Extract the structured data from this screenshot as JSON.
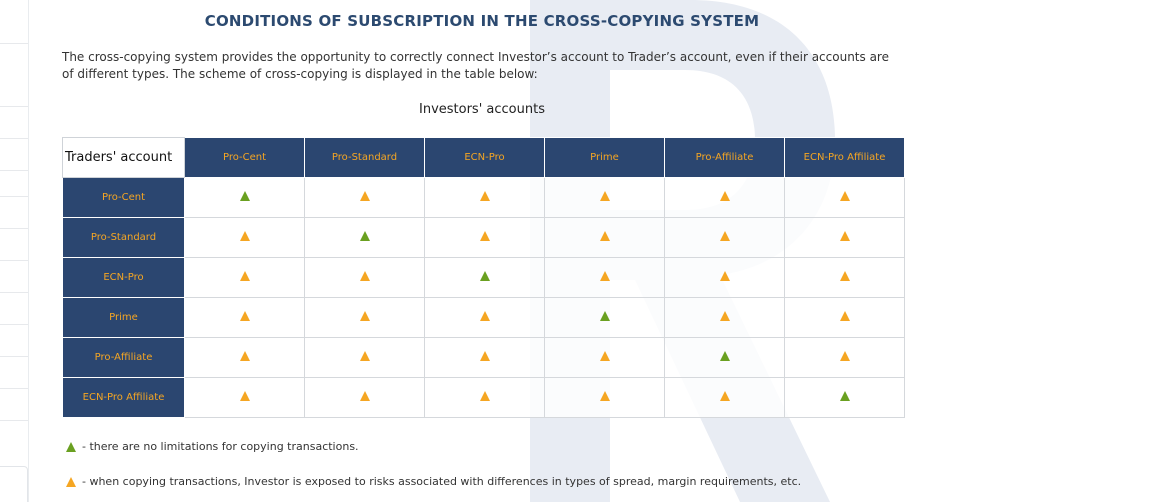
{
  "title": "CONDITIONS OF SUBSCRIPTION IN THE CROSS-COPYING SYSTEM",
  "intro": "The cross-copying system provides the opportunity to correctly connect Investor’s account to Trader’s account, even if their accounts are of different types. The scheme of cross-copying is displayed in the table below:",
  "investors_caption": "Investors' accounts",
  "traders_caption": "Traders' account",
  "columns": [
    "Pro-Cent",
    "Pro-Standard",
    "ECN-Pro",
    "Prime",
    "Pro-Affiliate",
    "ECN-Pro Affiliate"
  ],
  "rows": [
    {
      "label": "Pro-Cent",
      "cells": [
        "green",
        "orange",
        "orange",
        "orange",
        "orange",
        "orange"
      ]
    },
    {
      "label": "Pro-Standard",
      "cells": [
        "orange",
        "green",
        "orange",
        "orange",
        "orange",
        "orange"
      ]
    },
    {
      "label": "ECN-Pro",
      "cells": [
        "orange",
        "orange",
        "green",
        "orange",
        "orange",
        "orange"
      ]
    },
    {
      "label": "Prime",
      "cells": [
        "orange",
        "orange",
        "orange",
        "green",
        "orange",
        "orange"
      ]
    },
    {
      "label": "Pro-Affiliate",
      "cells": [
        "orange",
        "orange",
        "orange",
        "orange",
        "green",
        "orange"
      ]
    },
    {
      "label": "ECN-Pro Affiliate",
      "cells": [
        "orange",
        "orange",
        "orange",
        "orange",
        "orange",
        "green"
      ]
    }
  ],
  "legend": {
    "green_text": "- there are no limitations for copying transactions.",
    "orange_text": "- when copying transactions, Investor is exposed to risks associated with differences in types of spread, margin requirements, etc."
  },
  "colors": {
    "header_bg": "#2b4670",
    "header_text": "#f5a623",
    "title": "#2c4a70",
    "green": "#6aa021",
    "orange": "#f5a623"
  }
}
